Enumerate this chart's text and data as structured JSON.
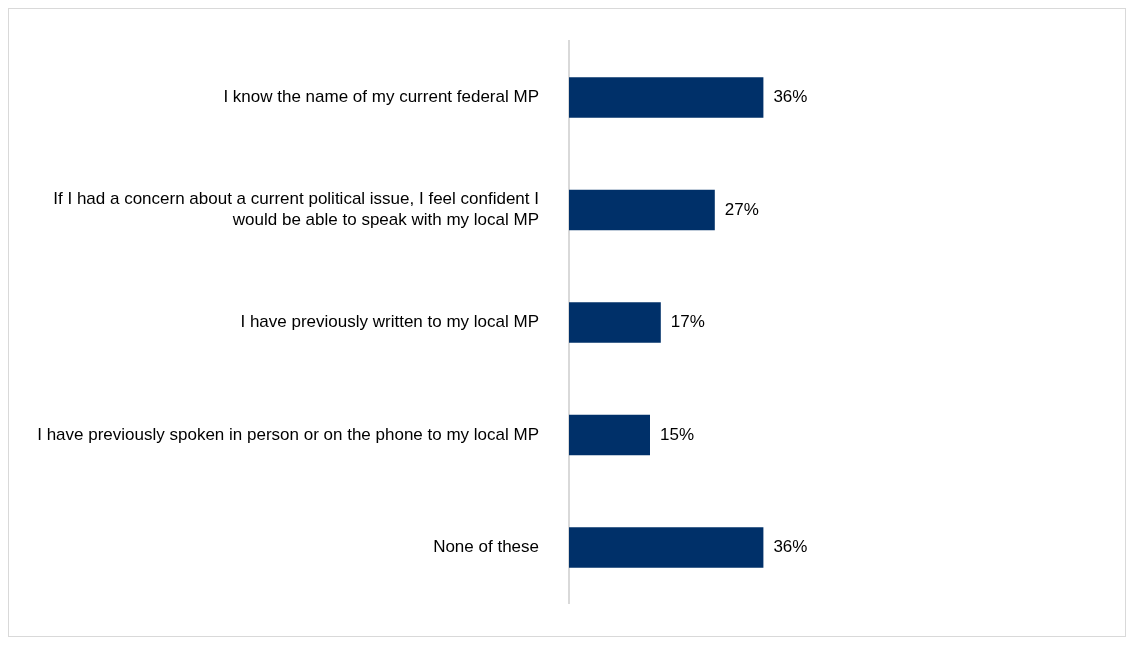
{
  "chart_data": {
    "type": "bar",
    "orientation": "horizontal",
    "tick_labels": "y",
    "categories": [
      "I know the name of my current federal MP",
      "If I had a concern about a current political issue, I feel confident I would be able to speak with my local MP",
      "I have previously written to my local MP",
      "I have previously spoken in person or on the phone to my local MP",
      "None of these"
    ],
    "values": [
      36,
      27,
      17,
      15,
      36
    ],
    "value_labels": [
      "36%",
      "27%",
      "17%",
      "15%",
      "36%"
    ],
    "color": "#003069"
  }
}
